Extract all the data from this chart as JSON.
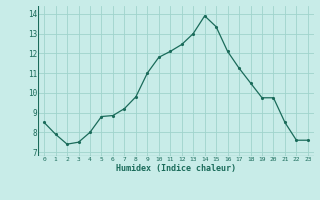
{
  "x": [
    0,
    1,
    2,
    3,
    4,
    5,
    6,
    7,
    8,
    9,
    10,
    11,
    12,
    13,
    14,
    15,
    16,
    17,
    18,
    19,
    20,
    21,
    22,
    23
  ],
  "y": [
    8.5,
    7.9,
    7.4,
    7.5,
    8.0,
    8.8,
    8.85,
    9.2,
    9.8,
    11.0,
    11.8,
    12.1,
    12.45,
    13.0,
    13.9,
    13.35,
    12.1,
    11.25,
    10.5,
    9.75,
    9.75,
    8.5,
    7.6,
    7.6
  ],
  "xlabel": "Humidex (Indice chaleur)",
  "bg_color": "#c8ece8",
  "line_color": "#1a6b5a",
  "marker_color": "#1a6b5a",
  "grid_color": "#a0d4cc",
  "yticks": [
    7,
    8,
    9,
    10,
    11,
    12,
    13,
    14
  ],
  "xticks": [
    0,
    1,
    2,
    3,
    4,
    5,
    6,
    7,
    8,
    9,
    10,
    11,
    12,
    13,
    14,
    15,
    16,
    17,
    18,
    19,
    20,
    21,
    22,
    23
  ],
  "ylim": [
    6.8,
    14.4
  ],
  "xlim": [
    -0.5,
    23.5
  ]
}
